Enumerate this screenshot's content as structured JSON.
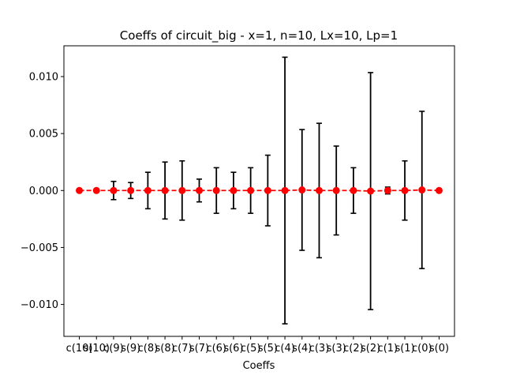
{
  "chart_data": {
    "type": "scatter",
    "title": "Coeffs of circuit_big - x=1, n=10, Lx=10, Lp=1",
    "xlabel": "Coeffs",
    "ylabel": "",
    "categories": [
      "c(10)",
      "s(10)",
      "c(9)",
      "s(9)",
      "c(8)",
      "s(8)",
      "c(7)",
      "s(7)",
      "c(6)",
      "s(6)",
      "c(5)",
      "s(5)",
      "c(4)",
      "s(4)",
      "c(3)",
      "s(3)",
      "c(2)",
      "s(2)",
      "c(1)",
      "s(1)",
      "c(0)",
      "s(0)"
    ],
    "series": [
      {
        "values": [
          0.0,
          0.0,
          0.0,
          0.0,
          0.0,
          0.0,
          0.0,
          0.0,
          0.0,
          0.0,
          0.0,
          0.0,
          0.0,
          5e-05,
          0.0,
          0.0,
          0.0,
          -5e-05,
          0.0,
          0.0,
          5e-05,
          0.0
        ],
        "errors": [
          0.0,
          0.0,
          0.0008,
          0.0007,
          0.0016,
          0.0025,
          0.0026,
          0.001,
          0.002,
          0.0016,
          0.002,
          0.0031,
          0.0117,
          0.0053,
          0.0059,
          0.0039,
          0.002,
          0.0104,
          0.0003,
          0.0026,
          0.0069,
          0.0
        ],
        "color": "#ff0000",
        "line_style": "dashed",
        "marker": "circle",
        "errorbar_color": "#000000"
      }
    ],
    "ylim": [
      -0.0128,
      0.0127
    ],
    "yticks": [
      -0.01,
      -0.005,
      0.0,
      0.005,
      0.01
    ],
    "ytick_labels": [
      "−0.010",
      "−0.005",
      "0.000",
      "0.005",
      "0.010"
    ],
    "grid": false,
    "legend": "none"
  }
}
